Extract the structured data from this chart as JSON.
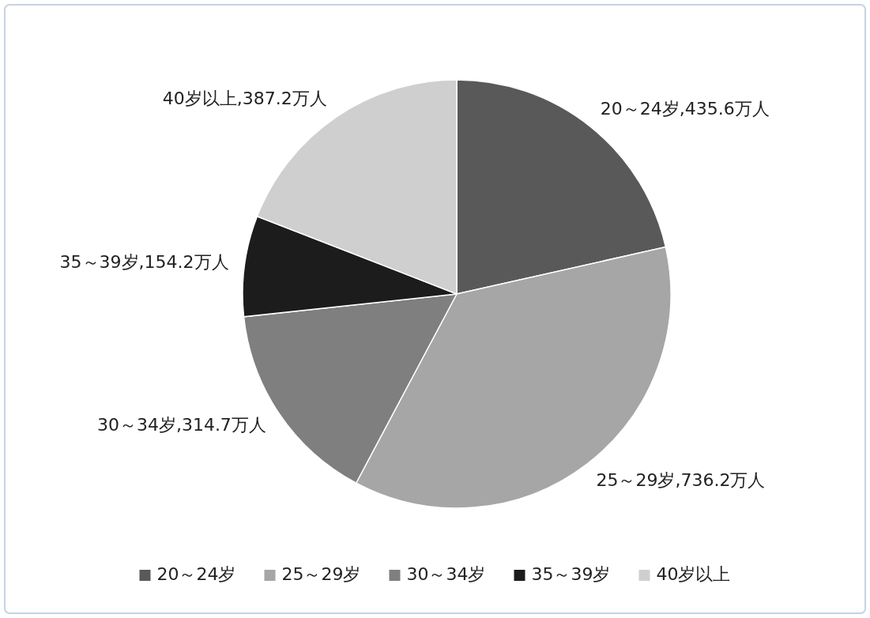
{
  "chart_data": {
    "type": "pie",
    "categories": [
      "20～24岁",
      "25～29岁",
      "30～34岁",
      "35～39岁",
      "40岁以上"
    ],
    "values": [
      435.6,
      736.2,
      314.7,
      154.2,
      387.2
    ],
    "colors": [
      "#595959",
      "#a6a6a6",
      "#7f7f7f",
      "#1c1c1c",
      "#cfcfcf"
    ],
    "value_labels": [
      "20～24岁,435.6万人",
      "25～29岁,736.2万人",
      "30～34岁,314.7万人",
      "35～39岁,154.2万人",
      "40岁以上,387.2万人"
    ],
    "legend": "bottom"
  }
}
